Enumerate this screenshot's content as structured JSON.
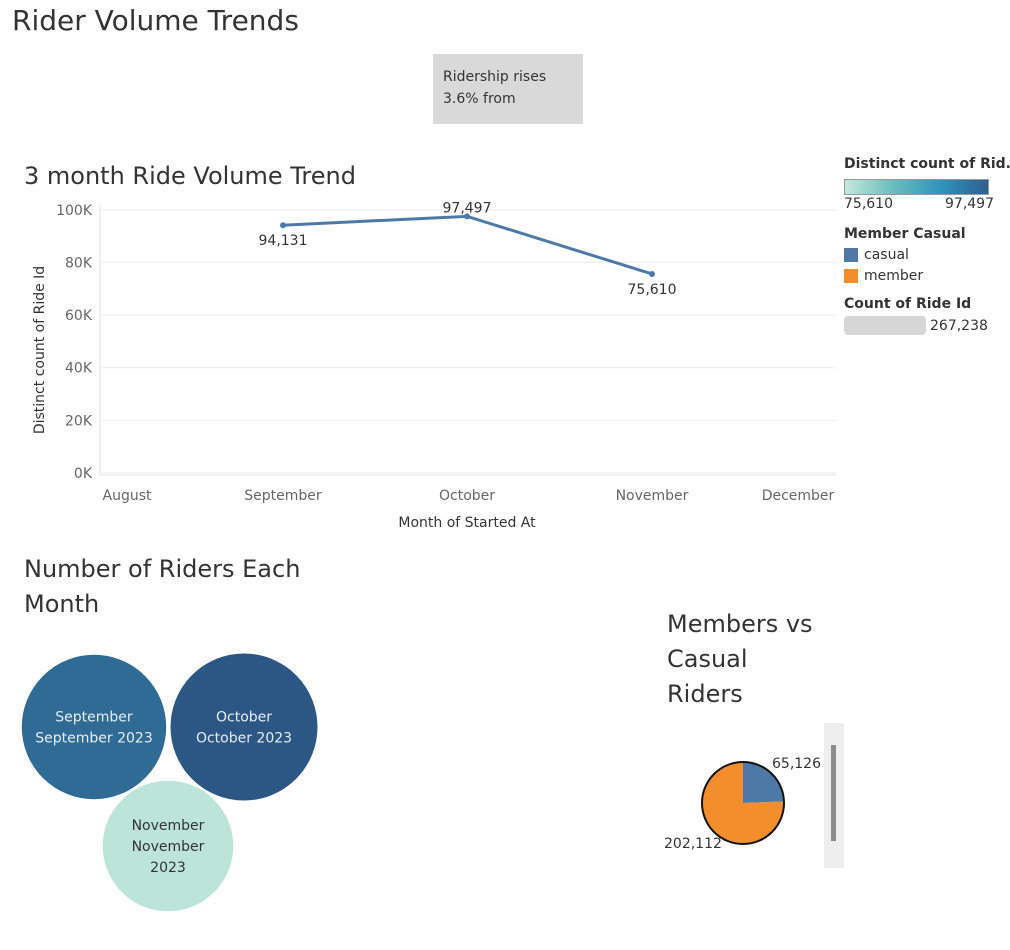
{
  "dashboard_title": "Rider Volume Trends",
  "callout": {
    "line1": "Ridership rises",
    "line2": "3.6% from"
  },
  "line_chart_title": "3 month Ride Volume Trend",
  "bubble_title": {
    "line1": "Number of Riders Each",
    "line2": "Month"
  },
  "pie_title": {
    "line1": "Members vs",
    "line2": "Casual",
    "line3": "Riders"
  },
  "legend": {
    "distinct_title": "Distinct count of Rid..",
    "ramp_min": "75,610",
    "ramp_max": "97,497",
    "member_title": "Member Casual",
    "items": [
      {
        "label": "casual",
        "color": "#4e79a7"
      },
      {
        "label": "member",
        "color": "#f28e2b"
      }
    ],
    "size_title": "Count of Ride Id",
    "size_value": "267,238"
  },
  "chart_data": [
    {
      "type": "line",
      "title": "3 month Ride Volume Trend",
      "xlabel": "Month of Started At",
      "ylabel": "Distinct count of Ride Id",
      "categories": [
        "August",
        "September",
        "October",
        "November",
        "December"
      ],
      "x": [
        "September",
        "October",
        "November"
      ],
      "y": [
        94131,
        97497,
        75610
      ],
      "data_labels": [
        "94,131",
        "97,497",
        "75,610"
      ],
      "ylim": [
        0,
        100000
      ],
      "yticks": [
        0,
        20000,
        40000,
        60000,
        80000,
        100000
      ],
      "ytick_labels": [
        "0K",
        "20K",
        "40K",
        "60K",
        "80K",
        "100K"
      ],
      "grid": true,
      "color": "#4e79a7"
    },
    {
      "type": "bubble",
      "title": "Number of Riders Each Month",
      "items": [
        {
          "month": "September",
          "period": "September 2023",
          "value": 94131,
          "color": "#2f6b94",
          "text_color": "#e6eef4"
        },
        {
          "month": "October",
          "period": "October 2023",
          "value": 97497,
          "color": "#2c5784",
          "text_color": "#e6eef4"
        },
        {
          "month": "November",
          "period": "November 2023",
          "value": 75610,
          "color": "#bde4d8",
          "text_color": "#333333"
        }
      ]
    },
    {
      "type": "pie",
      "title": "Members vs Casual Riders",
      "slices": [
        {
          "name": "casual",
          "value": 65126,
          "label": "65,126",
          "color": "#4e79a7"
        },
        {
          "name": "member",
          "value": 202112,
          "label": "202,112",
          "color": "#f28e2b"
        }
      ]
    }
  ]
}
